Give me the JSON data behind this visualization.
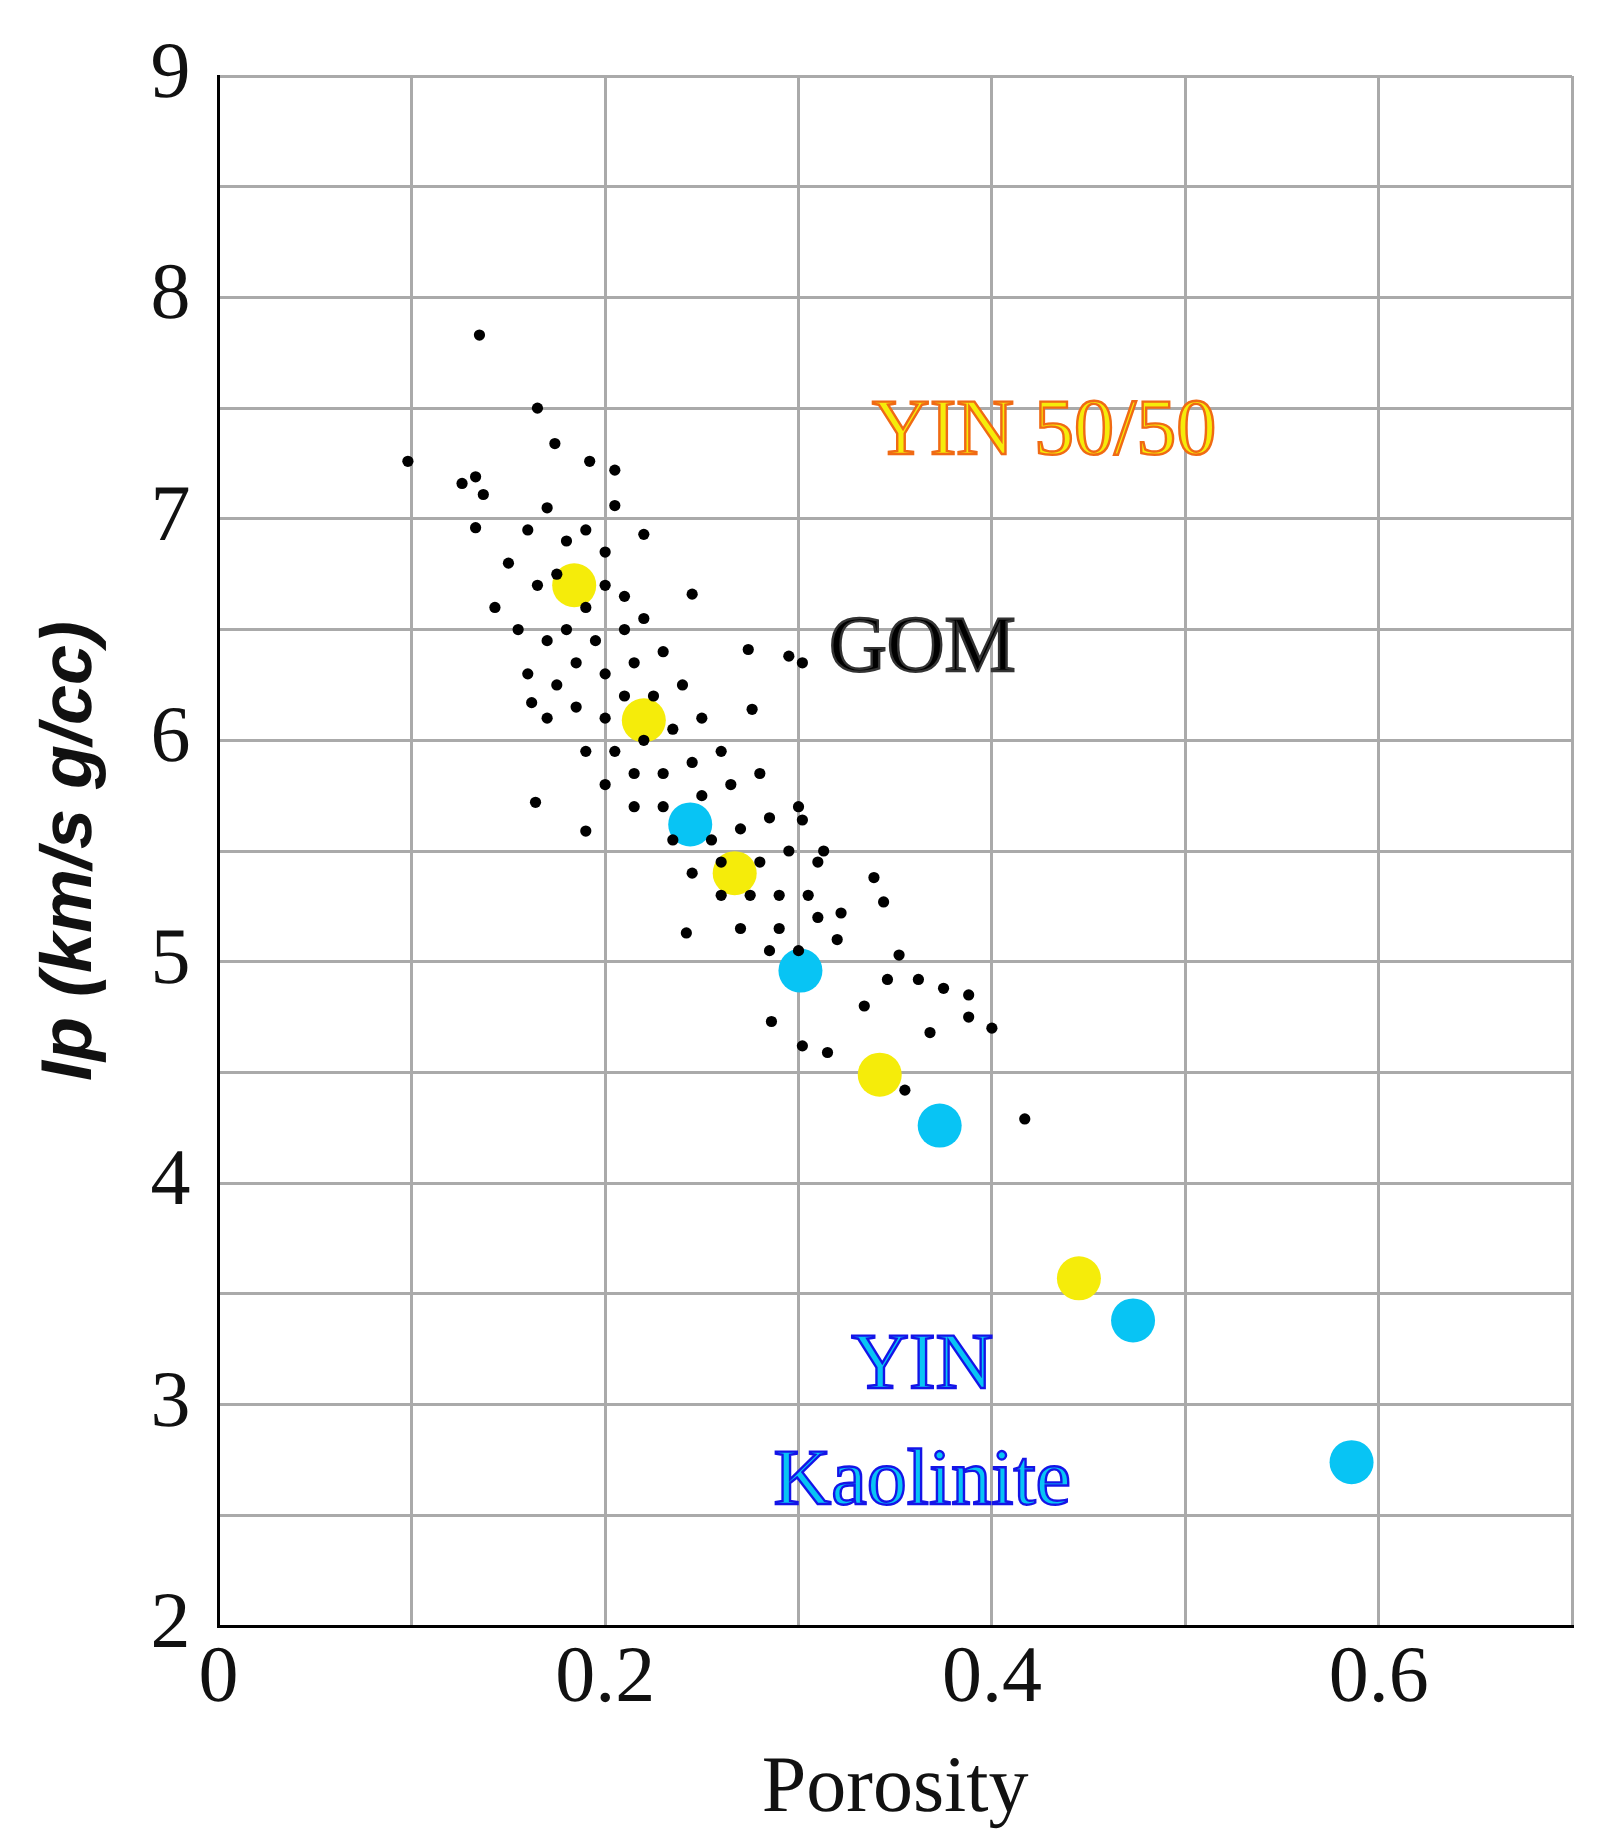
{
  "chart_data": {
    "type": "scatter",
    "xlabel": "Porosity",
    "ylabel": "Ip (km/s g/cc)",
    "xlim": [
      0,
      0.7
    ],
    "ylim": [
      2,
      9
    ],
    "xticks": [
      0,
      {
        "value": 0.1,
        "label": null
      },
      0.2,
      {
        "value": 0.3,
        "label": null
      },
      0.4,
      {
        "value": 0.5,
        "label": null
      },
      0.6,
      {
        "value": 0.7,
        "label": null
      }
    ],
    "yticks": [
      2,
      {
        "value": 2.5,
        "label": null
      },
      3,
      {
        "value": 3.5,
        "label": null
      },
      4,
      {
        "value": 4.5,
        "label": null
      },
      5,
      {
        "value": 5.5,
        "label": null
      },
      6,
      {
        "value": 6.5,
        "label": null
      },
      7,
      {
        "value": 7.5,
        "label": null
      },
      8,
      {
        "value": 8.5,
        "label": null
      },
      9
    ],
    "grid": true,
    "marker": "circle",
    "series": [
      {
        "name": "GOM",
        "color": "#000000",
        "x": [
          0.135,
          0.098,
          0.165,
          0.174,
          0.126,
          0.133,
          0.137,
          0.192,
          0.205,
          0.205,
          0.133,
          0.143,
          0.22,
          0.245,
          0.274,
          0.295,
          0.302,
          0.276,
          0.162,
          0.164,
          0.19,
          0.242,
          0.302,
          0.313,
          0.339,
          0.344,
          0.322,
          0.352,
          0.362,
          0.375,
          0.388,
          0.388,
          0.4,
          0.368,
          0.334,
          0.286,
          0.302,
          0.315,
          0.417,
          0.355,
          0.346,
          0.16,
          0.17,
          0.18,
          0.19,
          0.2,
          0.15,
          0.165,
          0.175,
          0.19,
          0.2,
          0.21,
          0.155,
          0.17,
          0.18,
          0.195,
          0.21,
          0.22,
          0.16,
          0.175,
          0.185,
          0.2,
          0.215,
          0.23,
          0.17,
          0.185,
          0.2,
          0.21,
          0.225,
          0.24,
          0.19,
          0.205,
          0.22,
          0.235,
          0.25,
          0.2,
          0.215,
          0.23,
          0.245,
          0.26,
          0.215,
          0.23,
          0.25,
          0.265,
          0.28,
          0.235,
          0.255,
          0.27,
          0.285,
          0.3,
          0.245,
          0.26,
          0.28,
          0.295,
          0.31,
          0.26,
          0.275,
          0.29,
          0.305,
          0.27,
          0.29,
          0.31,
          0.285,
          0.3,
          0.32
        ],
        "values": [
          7.83,
          7.26,
          7.5,
          7.34,
          7.16,
          7.19,
          7.11,
          7.26,
          7.22,
          7.06,
          6.96,
          6.6,
          6.93,
          6.66,
          6.41,
          6.38,
          6.35,
          6.14,
          6.17,
          5.72,
          5.59,
          5.13,
          5.64,
          5.5,
          5.38,
          5.27,
          5.22,
          5.03,
          4.92,
          4.88,
          4.85,
          4.75,
          4.7,
          4.68,
          4.8,
          4.73,
          4.62,
          4.59,
          4.29,
          4.42,
          4.92,
          6.95,
          7.05,
          6.9,
          6.95,
          6.85,
          6.8,
          6.7,
          6.75,
          6.6,
          6.7,
          6.65,
          6.5,
          6.45,
          6.5,
          6.45,
          6.5,
          6.55,
          6.3,
          6.25,
          6.35,
          6.3,
          6.35,
          6.4,
          6.1,
          6.15,
          6.1,
          6.2,
          6.2,
          6.25,
          5.95,
          5.95,
          6.0,
          6.05,
          6.1,
          5.8,
          5.85,
          5.85,
          5.9,
          5.95,
          5.7,
          5.7,
          5.75,
          5.8,
          5.85,
          5.55,
          5.55,
          5.6,
          5.65,
          5.7,
          5.4,
          5.45,
          5.45,
          5.5,
          5.45,
          5.3,
          5.3,
          5.3,
          5.3,
          5.15,
          5.15,
          5.2,
          5.05,
          5.05,
          5.1
        ]
      },
      {
        "name": "YIN 50/50",
        "color": "#f5ec0a",
        "x": [
          0.184,
          0.22,
          0.267,
          0.342,
          0.445
        ],
        "values": [
          6.7,
          6.09,
          5.4,
          4.49,
          3.57
        ]
      },
      {
        "name": "YIN Kaolinite",
        "color": "#08c4f4",
        "x": [
          0.244,
          0.301,
          0.373,
          0.473,
          0.586
        ],
        "values": [
          5.62,
          4.96,
          4.26,
          3.38,
          2.74
        ]
      }
    ]
  }
}
